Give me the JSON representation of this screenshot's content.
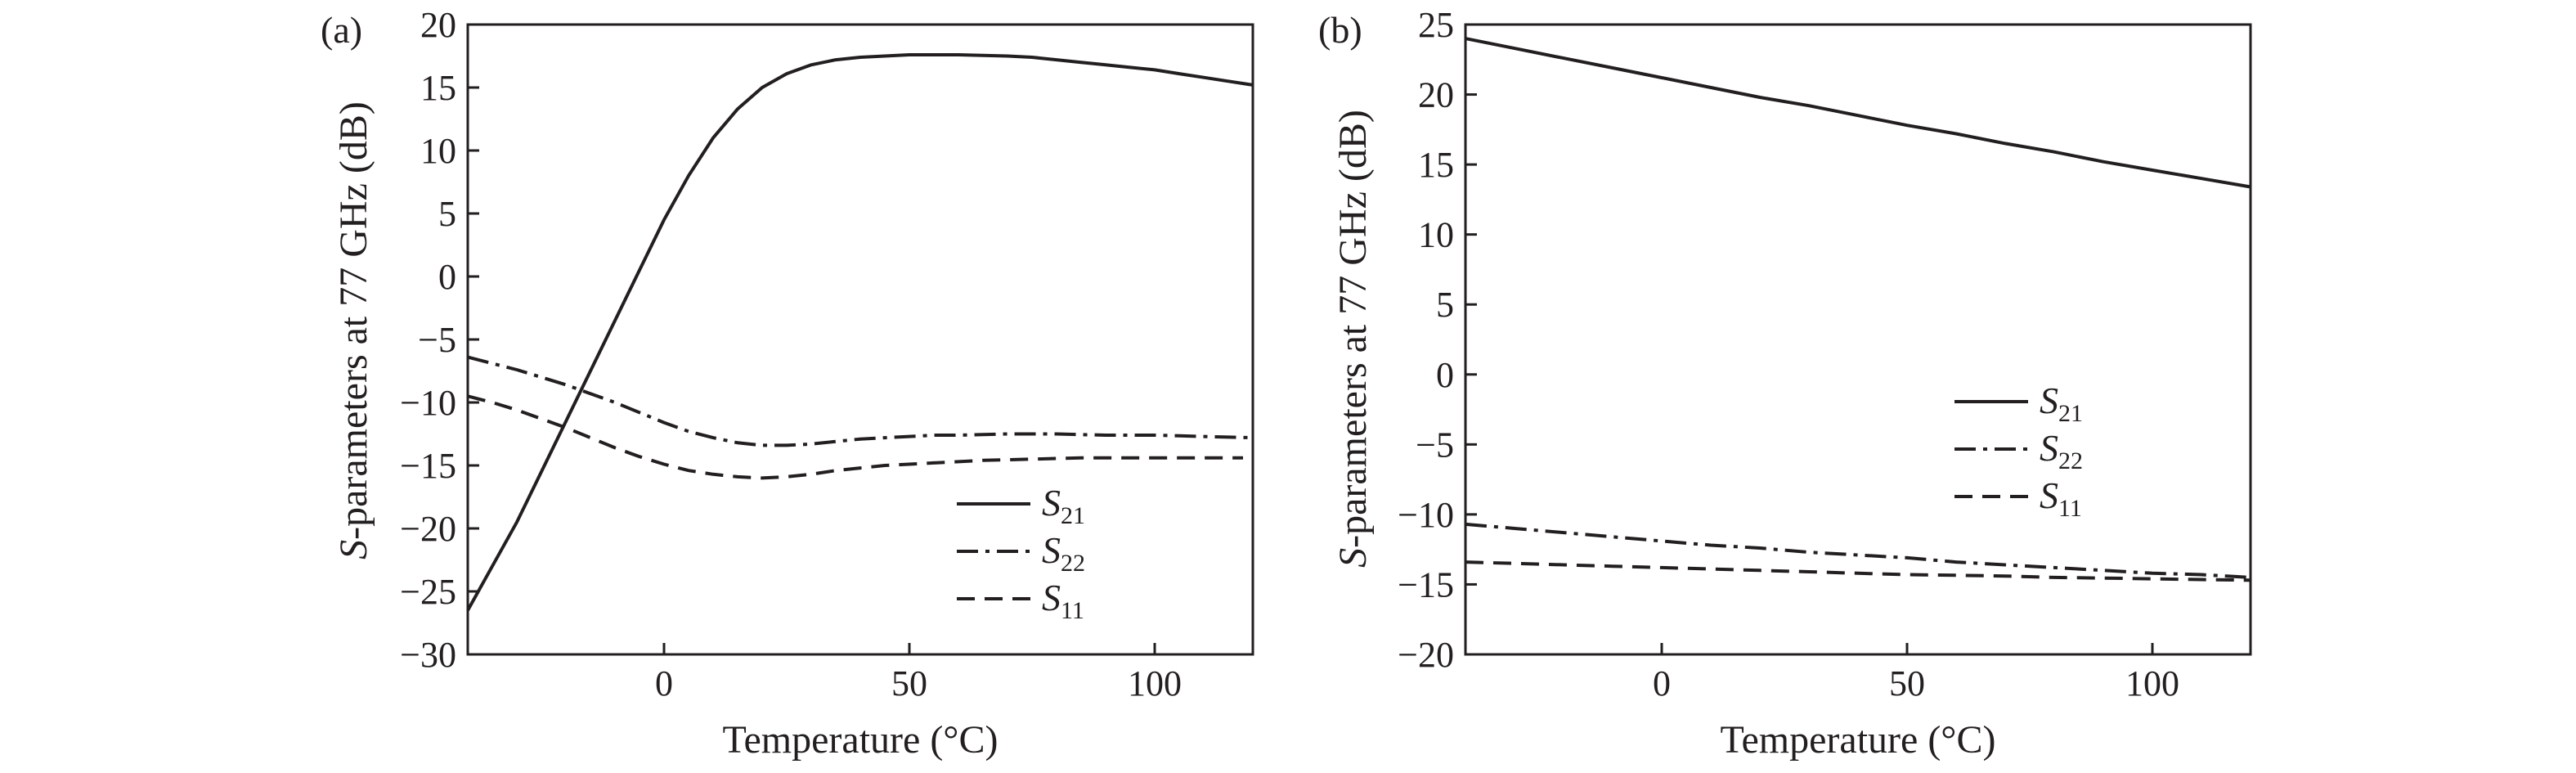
{
  "chart_data": [
    {
      "type": "line",
      "panel_label": "(a)",
      "xlabel": "Temperature (°C)",
      "ylabel": {
        "italic": "S",
        "rest": "-parameters at 77 GHz (dB)"
      },
      "xlim": [
        -40,
        120
      ],
      "ylim": [
        -30,
        20
      ],
      "xticks": [
        0,
        50,
        100
      ],
      "yticks": [
        -30,
        -25,
        -20,
        -15,
        -10,
        -5,
        0,
        5,
        10,
        15,
        20
      ],
      "grid": false,
      "legend_position": "bottom-right",
      "series": [
        {
          "label": {
            "main": "S",
            "sub": "21"
          },
          "dash": "solid",
          "x": [
            -40,
            -35,
            -30,
            -25,
            -20,
            -15,
            -10,
            -5,
            0,
            5,
            10,
            15,
            20,
            25,
            30,
            35,
            40,
            45,
            50,
            55,
            60,
            65,
            70,
            75,
            80,
            85,
            90,
            95,
            100,
            105,
            110,
            115,
            120
          ],
          "y": [
            -26.5,
            -23,
            -19.5,
            -15.5,
            -11.5,
            -7.5,
            -3.5,
            0.5,
            4.5,
            8,
            11,
            13.3,
            15,
            16.1,
            16.8,
            17.2,
            17.4,
            17.5,
            17.6,
            17.6,
            17.6,
            17.55,
            17.5,
            17.4,
            17.2,
            17.0,
            16.8,
            16.6,
            16.4,
            16.1,
            15.8,
            15.5,
            15.2
          ]
        },
        {
          "label": {
            "main": "S",
            "sub": "22"
          },
          "dash": "dashdot",
          "x": [
            -40,
            -35,
            -30,
            -25,
            -20,
            -15,
            -10,
            -5,
            0,
            5,
            10,
            15,
            20,
            25,
            30,
            35,
            40,
            45,
            50,
            55,
            60,
            65,
            70,
            75,
            80,
            85,
            90,
            95,
            100,
            105,
            110,
            115,
            120
          ],
          "y": [
            -6.4,
            -6.9,
            -7.4,
            -8.0,
            -8.6,
            -9.3,
            -10.0,
            -10.8,
            -11.6,
            -12.3,
            -12.8,
            -13.2,
            -13.4,
            -13.4,
            -13.3,
            -13.1,
            -12.9,
            -12.8,
            -12.7,
            -12.6,
            -12.6,
            -12.55,
            -12.5,
            -12.5,
            -12.5,
            -12.55,
            -12.6,
            -12.6,
            -12.6,
            -12.65,
            -12.7,
            -12.75,
            -12.8
          ]
        },
        {
          "label": {
            "main": "S",
            "sub": "11"
          },
          "dash": "dashed",
          "x": [
            -40,
            -35,
            -30,
            -25,
            -20,
            -15,
            -10,
            -5,
            0,
            5,
            10,
            15,
            20,
            25,
            30,
            35,
            40,
            45,
            50,
            55,
            60,
            65,
            70,
            75,
            80,
            85,
            90,
            95,
            100,
            105,
            110,
            115,
            118
          ],
          "y": [
            -9.5,
            -10.0,
            -10.6,
            -11.3,
            -12.0,
            -12.8,
            -13.6,
            -14.3,
            -14.9,
            -15.4,
            -15.7,
            -15.9,
            -16.0,
            -15.9,
            -15.7,
            -15.4,
            -15.2,
            -15.0,
            -14.9,
            -14.8,
            -14.7,
            -14.6,
            -14.55,
            -14.5,
            -14.45,
            -14.4,
            -14.4,
            -14.4,
            -14.4,
            -14.4,
            -14.4,
            -14.4,
            -14.4
          ]
        }
      ]
    },
    {
      "type": "line",
      "panel_label": "(b)",
      "xlabel": "Temperature (°C)",
      "ylabel": {
        "italic": "S",
        "rest": "-parameters at 77 GHz (dB)"
      },
      "xlim": [
        -40,
        120
      ],
      "ylim": [
        -20,
        25
      ],
      "xticks": [
        0,
        50,
        100
      ],
      "yticks": [
        -20,
        -15,
        -10,
        -5,
        0,
        5,
        10,
        15,
        20,
        25
      ],
      "grid": false,
      "legend_position": "right",
      "series": [
        {
          "label": {
            "main": "S",
            "sub": "21"
          },
          "dash": "solid",
          "x": [
            -40,
            -30,
            -20,
            -10,
            0,
            10,
            20,
            30,
            40,
            50,
            60,
            70,
            80,
            90,
            100,
            110,
            120
          ],
          "y": [
            24,
            23.3,
            22.6,
            21.9,
            21.2,
            20.5,
            19.8,
            19.2,
            18.5,
            17.8,
            17.2,
            16.5,
            15.9,
            15.2,
            14.6,
            14.0,
            13.4
          ]
        },
        {
          "label": {
            "main": "S",
            "sub": "22"
          },
          "dash": "dashdot",
          "x": [
            -40,
            -30,
            -20,
            -10,
            0,
            10,
            20,
            30,
            40,
            50,
            60,
            70,
            80,
            90,
            100,
            110,
            120
          ],
          "y": [
            -10.7,
            -11.0,
            -11.3,
            -11.6,
            -11.9,
            -12.2,
            -12.4,
            -12.7,
            -12.9,
            -13.1,
            -13.4,
            -13.6,
            -13.8,
            -14.0,
            -14.2,
            -14.3,
            -14.5
          ]
        },
        {
          "label": {
            "main": "S",
            "sub": "11"
          },
          "dash": "dashed",
          "x": [
            -40,
            -30,
            -20,
            -10,
            0,
            10,
            20,
            30,
            40,
            50,
            60,
            70,
            80,
            90,
            100,
            110,
            120
          ],
          "y": [
            -13.4,
            -13.5,
            -13.6,
            -13.7,
            -13.8,
            -13.9,
            -14.0,
            -14.1,
            -14.2,
            -14.3,
            -14.35,
            -14.4,
            -14.5,
            -14.55,
            -14.6,
            -14.65,
            -14.7
          ]
        }
      ]
    }
  ]
}
